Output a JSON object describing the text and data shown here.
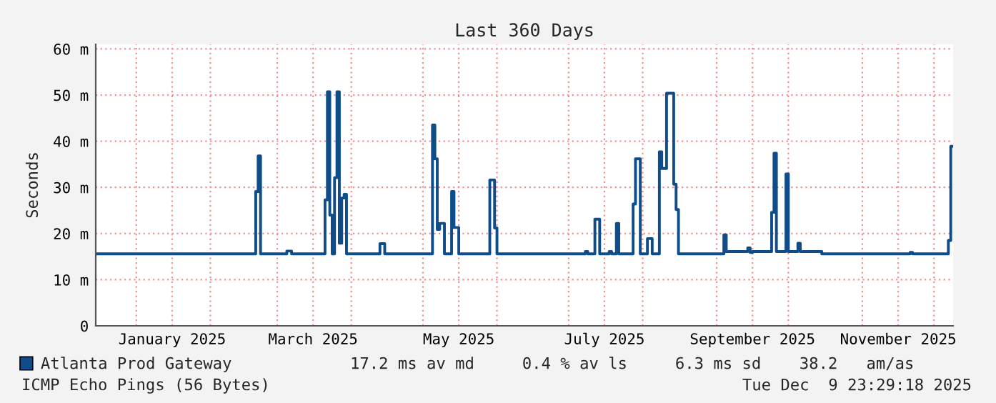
{
  "chart_data": {
    "type": "step",
    "title": "Last 360 Days",
    "ylabel": "Seconds",
    "x": [
      "2024-12-15",
      "2025-02-20",
      "2025-02-21",
      "2025-02-22",
      "2025-03-05",
      "2025-03-07",
      "2025-03-21",
      "2025-03-22",
      "2025-03-23",
      "2025-03-24",
      "2025-03-25",
      "2025-03-26",
      "2025-03-27",
      "2025-03-28",
      "2025-03-29",
      "2025-03-30",
      "2025-04-13",
      "2025-04-15",
      "2025-05-05",
      "2025-05-06",
      "2025-05-07",
      "2025-05-08",
      "2025-05-10",
      "2025-05-13",
      "2025-05-14",
      "2025-05-16",
      "2025-05-29",
      "2025-05-31",
      "2025-06-01",
      "2025-07-08",
      "2025-07-09",
      "2025-07-12",
      "2025-07-14",
      "2025-07-18",
      "2025-07-19",
      "2025-07-21",
      "2025-07-22",
      "2025-07-28",
      "2025-07-29",
      "2025-07-31",
      "2025-08-03",
      "2025-08-05",
      "2025-08-08",
      "2025-08-09",
      "2025-08-11",
      "2025-08-14",
      "2025-08-15",
      "2025-08-16",
      "2025-09-04",
      "2025-09-05",
      "2025-09-14",
      "2025-09-15",
      "2025-09-16",
      "2025-09-24",
      "2025-09-25",
      "2025-09-26",
      "2025-09-30",
      "2025-10-01",
      "2025-10-05",
      "2025-10-06",
      "2025-10-15",
      "2025-11-21",
      "2025-11-22",
      "2025-12-07",
      "2025-12-08",
      "2025-12-09"
    ],
    "series": [
      {
        "name": "Atlanta Prod Gateway",
        "color": "#0f4c8a",
        "values": [
          15.6,
          29.1,
          36.8,
          15.6,
          16.2,
          15.6,
          27.3,
          50.7,
          24.0,
          15.6,
          32.1,
          50.7,
          17.9,
          27.7,
          28.5,
          15.6,
          17.8,
          15.6,
          43.5,
          36.2,
          20.9,
          22.2,
          15.6,
          29.1,
          21.3,
          15.6,
          31.6,
          21.2,
          15.6,
          16.1,
          15.6,
          23.1,
          15.6,
          16.1,
          15.6,
          22.2,
          15.6,
          26.4,
          36.2,
          15.6,
          18.9,
          15.6,
          37.7,
          34.1,
          50.4,
          30.7,
          25.2,
          15.6,
          19.7,
          16.1,
          16.9,
          15.9,
          16.1,
          24.6,
          37.4,
          16.1,
          32.9,
          16.1,
          17.9,
          16.1,
          15.6,
          15.9,
          15.6,
          18.5,
          38.9,
          38.9
        ]
      }
    ],
    "xlim": [
      "2024-12-15",
      "2025-12-09"
    ],
    "xticks": [
      {
        "value": "2025-01-01",
        "label": null
      },
      {
        "value": "2025-01-16",
        "label": "January 2025"
      },
      {
        "value": "2025-02-01",
        "label": null
      },
      {
        "value": "2025-03-01",
        "label": null
      },
      {
        "value": "2025-03-16",
        "label": "March 2025"
      },
      {
        "value": "2025-04-01",
        "label": null
      },
      {
        "value": "2025-05-01",
        "label": null
      },
      {
        "value": "2025-05-16",
        "label": "May 2025"
      },
      {
        "value": "2025-06-01",
        "label": null
      },
      {
        "value": "2025-07-01",
        "label": null
      },
      {
        "value": "2025-07-16",
        "label": "July 2025"
      },
      {
        "value": "2025-08-01",
        "label": null
      },
      {
        "value": "2025-09-01",
        "label": null
      },
      {
        "value": "2025-09-16",
        "label": "September 2025"
      },
      {
        "value": "2025-10-01",
        "label": null
      },
      {
        "value": "2025-11-01",
        "label": null
      },
      {
        "value": "2025-11-16",
        "label": "November 2025"
      },
      {
        "value": "2025-12-01",
        "label": null
      }
    ],
    "ylim": [
      0,
      61
    ],
    "yticks": [
      0,
      {
        "value": 10,
        "label": "10 m"
      },
      {
        "value": 20,
        "label": "20 m"
      },
      {
        "value": 30,
        "label": "30 m"
      },
      {
        "value": 40,
        "label": "40 m"
      },
      {
        "value": 50,
        "label": "50 m"
      },
      {
        "value": 60,
        "label": "60 m"
      }
    ],
    "grid": true,
    "legend": "bottom",
    "annotations": [
      "17.2 ms av md     0.4 % av ls     6.3 ms sd    38.2   am/as",
      "ICMP Echo Pings (56 Bytes)",
      "Tue Dec  9 23:29:18 2025"
    ]
  }
}
